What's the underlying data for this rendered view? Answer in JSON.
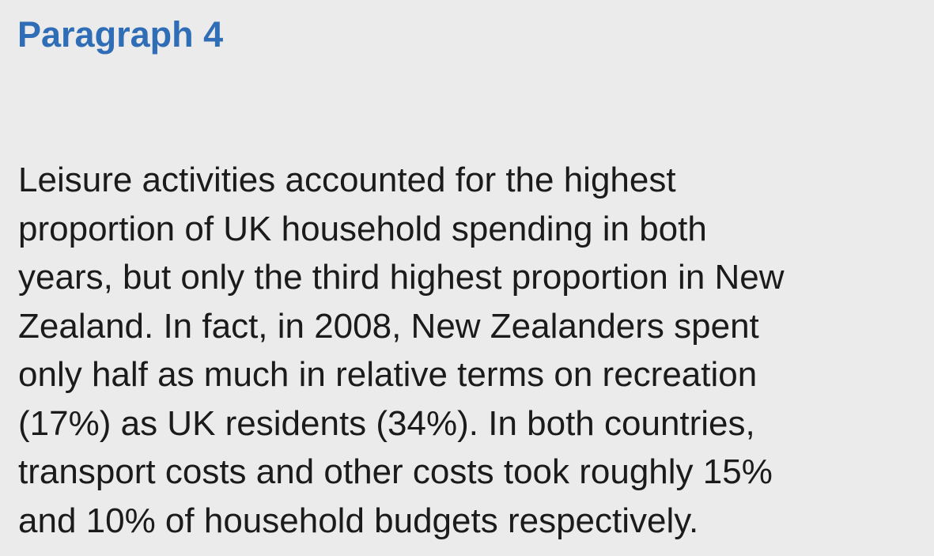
{
  "heading": "Paragraph 4",
  "paragraph": {
    "lines": [
      "Leisure activities accounted for the highest",
      "proportion of UK household spending in both",
      "years, but only the third highest proportion in New",
      "Zealand. In fact, in 2008, New Zealanders spent",
      "only half as much in relative terms on recreation",
      "(17%) as UK residents (34%). In both countries,",
      "transport costs and other costs took roughly 15%",
      "and 10% of household budgets respectively."
    ]
  },
  "colors": {
    "background": "#ebebeb",
    "heading": "#2f6eb6",
    "text": "#1b1b1b"
  }
}
